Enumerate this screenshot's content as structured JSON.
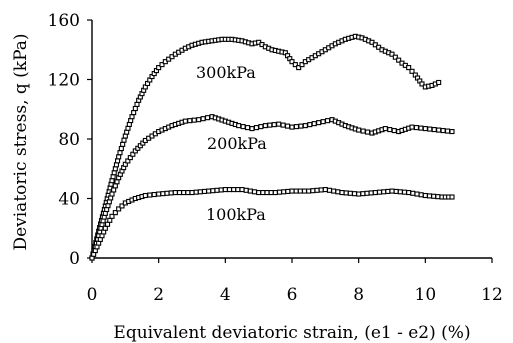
{
  "chart_data": {
    "type": "scatter",
    "xlabel": "Equivalent deviatoric strain, (e1 - e2)  (%)",
    "ylabel": "Deviatoric stress, q (kPa)",
    "xlim": [
      0,
      12
    ],
    "ylim": [
      0,
      160
    ],
    "x_ticks": [
      "0",
      "2",
      "4",
      "6",
      "8",
      "10",
      "12"
    ],
    "y_ticks": [
      "0",
      "40",
      "80",
      "120",
      "160"
    ],
    "x_tick_values": [
      0,
      2,
      4,
      6,
      8,
      10,
      12
    ],
    "y_tick_values": [
      0,
      40,
      80,
      120,
      160
    ],
    "grid": false,
    "series": [
      {
        "name": "300kPa",
        "x": [
          0,
          0.2,
          0.4,
          0.6,
          0.8,
          1.0,
          1.2,
          1.4,
          1.6,
          1.8,
          2.0,
          2.2,
          2.5,
          2.8,
          3.0,
          3.3,
          3.6,
          3.9,
          4.2,
          4.5,
          4.8,
          5.0,
          5.2,
          5.4,
          5.6,
          5.8,
          6.0,
          6.2,
          6.4,
          6.7,
          7.0,
          7.3,
          7.6,
          7.9,
          8.1,
          8.4,
          8.7,
          9.0,
          9.3,
          9.5,
          9.7,
          9.9,
          10.0,
          10.2,
          10.4
        ],
        "y": [
          0,
          18,
          35,
          52,
          68,
          82,
          95,
          106,
          115,
          122,
          128,
          132,
          137,
          141,
          143,
          145,
          146,
          147,
          147,
          146,
          144,
          145,
          142,
          140,
          139,
          138,
          132,
          128,
          132,
          136,
          140,
          144,
          147,
          149,
          148,
          145,
          140,
          137,
          131,
          128,
          123,
          117,
          115,
          116,
          118
        ]
      },
      {
        "name": "200kPa",
        "x": [
          0,
          0.2,
          0.4,
          0.6,
          0.8,
          1.0,
          1.3,
          1.6,
          2.0,
          2.4,
          2.8,
          3.2,
          3.6,
          4.0,
          4.4,
          4.8,
          5.2,
          5.6,
          6.0,
          6.4,
          6.8,
          7.2,
          7.6,
          8.0,
          8.4,
          8.8,
          9.2,
          9.6,
          10.0,
          10.4,
          10.8
        ],
        "y": [
          0,
          15,
          30,
          43,
          54,
          63,
          72,
          79,
          85,
          89,
          92,
          93,
          95,
          92,
          89,
          87,
          89,
          90,
          88,
          89,
          91,
          93,
          89,
          86,
          84,
          87,
          85,
          88,
          87,
          86,
          85
        ]
      },
      {
        "name": "100kPa",
        "x": [
          0,
          0.2,
          0.4,
          0.6,
          0.8,
          1.0,
          1.3,
          1.6,
          2.0,
          2.5,
          3.0,
          3.5,
          4.0,
          4.5,
          5.0,
          5.5,
          6.0,
          6.5,
          7.0,
          7.5,
          8.0,
          8.5,
          9.0,
          9.5,
          10.0,
          10.5,
          10.8
        ],
        "y": [
          0,
          10,
          20,
          28,
          33,
          37,
          40,
          42,
          43,
          44,
          44,
          45,
          46,
          46,
          44,
          44,
          45,
          45,
          46,
          44,
          43,
          44,
          45,
          44,
          42,
          41,
          41
        ]
      }
    ]
  }
}
